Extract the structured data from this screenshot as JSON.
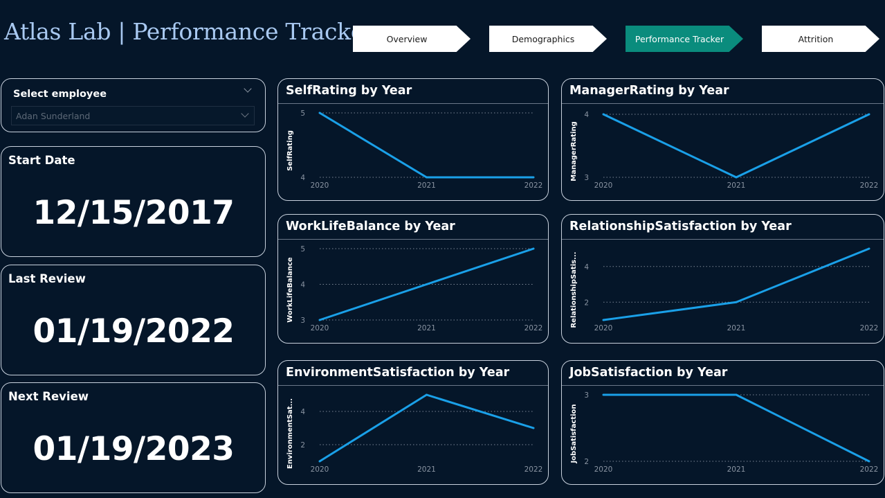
{
  "header": {
    "title": "Atlas Lab | Performance Tracker",
    "nav": [
      {
        "label": "Overview",
        "active": false
      },
      {
        "label": "Demographics",
        "active": false
      },
      {
        "label": "Performance Tracker",
        "active": true
      },
      {
        "label": "Attrition",
        "active": false
      }
    ]
  },
  "slicer": {
    "label": "Select employee",
    "value": "Adan Sunderland"
  },
  "kpis": {
    "start_date": {
      "label": "Start Date",
      "value": "12/15/2017"
    },
    "last_review": {
      "label": "Last Review",
      "value": "01/19/2022"
    },
    "next_review": {
      "label": "Next Review",
      "value": "01/19/2023"
    }
  },
  "colors": {
    "background": "#051629",
    "line": "#1aa0e8",
    "active_nav": "#0a8c7d",
    "title": "#a9c9f1"
  },
  "chart_data": [
    {
      "type": "line",
      "title": "SelfRating by Year",
      "xlabel": "",
      "ylabel": "SelfRating",
      "x": [
        "2020",
        "2021",
        "2022"
      ],
      "y_ticks": [
        4,
        5
      ],
      "ylim": [
        4,
        5
      ],
      "series": [
        {
          "values": [
            5,
            4,
            4
          ]
        }
      ]
    },
    {
      "type": "line",
      "title": "ManagerRating by Year",
      "xlabel": "",
      "ylabel": "ManagerRating",
      "x": [
        "2020",
        "2021",
        "2022"
      ],
      "y_ticks": [
        3,
        4
      ],
      "ylim": [
        3,
        4
      ],
      "series": [
        {
          "values": [
            4,
            3,
            4
          ]
        }
      ]
    },
    {
      "type": "line",
      "title": "WorkLifeBalance by Year",
      "xlabel": "",
      "ylabel": "WorkLifeBalance",
      "x": [
        "2020",
        "2021",
        "2022"
      ],
      "y_ticks": [
        3,
        4,
        5
      ],
      "ylim": [
        3,
        5
      ],
      "series": [
        {
          "values": [
            3,
            4,
            5
          ]
        }
      ]
    },
    {
      "type": "line",
      "title": "RelationshipSatisfaction by Year",
      "xlabel": "",
      "ylabel": "RelationshipSatis...",
      "x": [
        "2020",
        "2021",
        "2022"
      ],
      "y_ticks": [
        2,
        4
      ],
      "ylim": [
        1,
        5
      ],
      "series": [
        {
          "values": [
            1,
            2,
            5
          ]
        }
      ]
    },
    {
      "type": "line",
      "title": "EnvironmentSatisfaction by Year",
      "xlabel": "",
      "ylabel": "EnvironmentSat...",
      "x": [
        "2020",
        "2021",
        "2022"
      ],
      "y_ticks": [
        2,
        4
      ],
      "ylim": [
        1,
        5
      ],
      "series": [
        {
          "values": [
            1,
            5,
            3
          ]
        }
      ]
    },
    {
      "type": "line",
      "title": "JobSatisfaction by Year",
      "xlabel": "",
      "ylabel": "JobSatisfaction",
      "x": [
        "2020",
        "2021",
        "2022"
      ],
      "y_ticks": [
        2,
        3
      ],
      "ylim": [
        2,
        3
      ],
      "series": [
        {
          "values": [
            3,
            3,
            2
          ]
        }
      ]
    }
  ]
}
